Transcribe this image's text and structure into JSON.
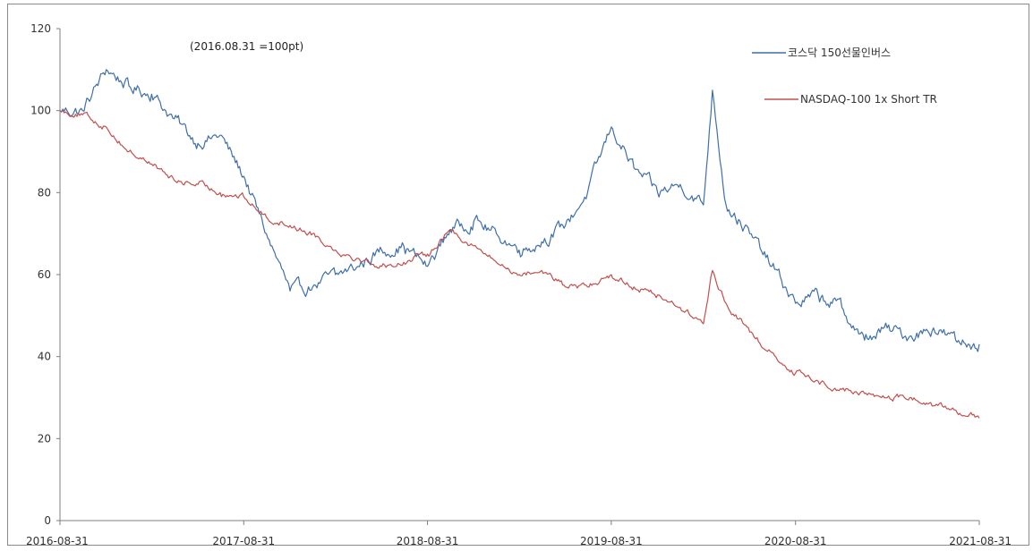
{
  "chart_data": {
    "type": "line",
    "annotation": "(2016.08.31  =100pt)",
    "x_tick_labels": [
      "2016-08-31",
      "2017-08-31",
      "2018-08-31",
      "2019-08-31",
      "2020-08-31",
      "2021-08-31"
    ],
    "y_tick_labels": [
      "0",
      "20",
      "40",
      "60",
      "80",
      "100",
      "120"
    ],
    "ylim": [
      0,
      120
    ],
    "xlim": [
      "2016-08-31",
      "2021-08-31"
    ],
    "grid": false,
    "legend_position": "top-right",
    "series": [
      {
        "name": "코스닥 150선물인버스",
        "color": "#3f6fa8",
        "x": [
          "2016-08-31",
          "2016-10-15",
          "2016-12-01",
          "2017-01-15",
          "2017-03-01",
          "2017-04-15",
          "2017-06-01",
          "2017-07-15",
          "2017-08-31",
          "2017-10-15",
          "2017-12-01",
          "2018-01-15",
          "2018-03-01",
          "2018-04-15",
          "2018-06-01",
          "2018-07-15",
          "2018-08-31",
          "2018-10-15",
          "2018-12-01",
          "2019-01-15",
          "2019-03-01",
          "2019-04-15",
          "2019-06-01",
          "2019-07-15",
          "2019-08-31",
          "2019-10-15",
          "2019-12-01",
          "2020-01-15",
          "2020-03-01",
          "2020-03-19",
          "2020-04-15",
          "2020-06-01",
          "2020-07-15",
          "2020-08-31",
          "2020-10-15",
          "2020-12-01",
          "2021-01-15",
          "2021-03-01",
          "2021-04-15",
          "2021-06-01",
          "2021-07-15",
          "2021-08-31"
        ],
        "values": [
          100,
          100,
          110,
          106,
          104,
          98,
          92,
          94,
          84,
          70,
          56,
          57,
          60,
          62,
          66,
          67,
          62,
          71,
          73,
          70,
          66,
          68,
          72,
          80,
          96,
          86,
          80,
          82,
          77,
          105,
          77,
          70,
          62,
          53,
          55,
          52,
          44,
          47,
          45,
          47,
          44,
          43
        ]
      },
      {
        "name": "NASDAQ-100 1x Short TR",
        "color": "#c0504d",
        "x": [
          "2016-08-31",
          "2016-10-15",
          "2016-12-01",
          "2017-01-15",
          "2017-03-01",
          "2017-04-15",
          "2017-06-01",
          "2017-07-15",
          "2017-08-31",
          "2017-10-15",
          "2017-12-01",
          "2018-01-15",
          "2018-03-01",
          "2018-04-15",
          "2018-06-01",
          "2018-07-15",
          "2018-08-31",
          "2018-10-15",
          "2018-12-01",
          "2019-01-15",
          "2019-03-01",
          "2019-04-15",
          "2019-06-01",
          "2019-07-15",
          "2019-08-31",
          "2019-10-15",
          "2019-12-01",
          "2020-01-15",
          "2020-03-01",
          "2020-03-19",
          "2020-04-15",
          "2020-06-01",
          "2020-07-15",
          "2020-08-31",
          "2020-10-15",
          "2020-12-01",
          "2021-01-15",
          "2021-03-01",
          "2021-04-15",
          "2021-06-01",
          "2021-07-15",
          "2021-08-31"
        ],
        "values": [
          100,
          99,
          96,
          90,
          87,
          83,
          82,
          80,
          79,
          74,
          72,
          70,
          66,
          64,
          62,
          63,
          65,
          71,
          67,
          63,
          60,
          61,
          57,
          57,
          60,
          57,
          55,
          52,
          48,
          61,
          53,
          46,
          41,
          36,
          34,
          32,
          31,
          30,
          30,
          28,
          27,
          25
        ]
      }
    ]
  }
}
